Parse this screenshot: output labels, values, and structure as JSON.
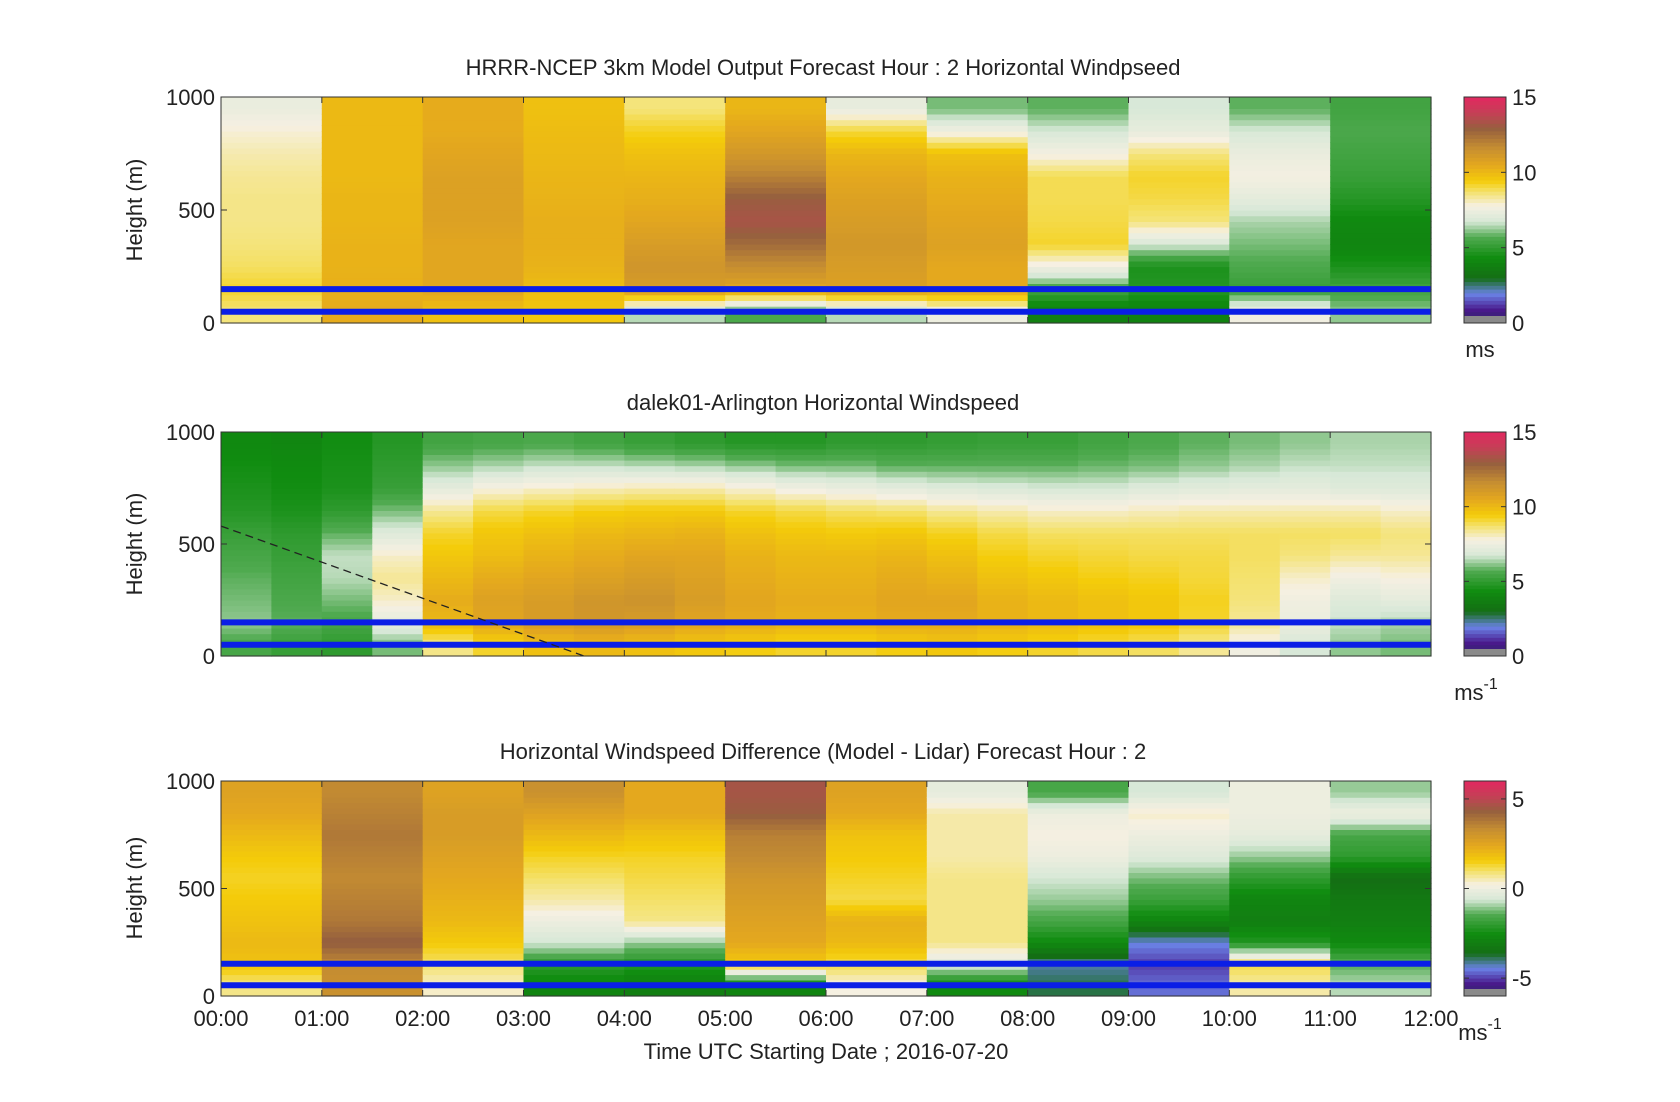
{
  "chart_data": [
    {
      "type": "heatmap",
      "title": "HRRR-NCEP 3km Model Output   Forecast Hour : 2 Horizontal Windpseed",
      "ylabel": "Height (m)",
      "ylim": [
        0,
        1000
      ],
      "yticks": [
        "0",
        "500",
        "1000"
      ],
      "x_hours": [
        0,
        1,
        2,
        3,
        4,
        5,
        6,
        7,
        8,
        9,
        10,
        11,
        12
      ],
      "colorbar": {
        "range": [
          0,
          15
        ],
        "ticks": [
          "0",
          "5",
          "10",
          "15"
        ],
        "unit_label": "ms",
        "unit_exp": ""
      },
      "reference_lines_m": [
        50,
        150
      ],
      "profiles": [
        {
          "hour": 0,
          "values": [
            8.6,
            9.2,
            8.8,
            8.6,
            8.5,
            8.5,
            8.4,
            8.2,
            7.9,
            7.4
          ]
        },
        {
          "hour": 1,
          "values": [
            10.4,
            10.3,
            10.2,
            10.2,
            10.1,
            10.1,
            10.0,
            10.0,
            10.0,
            10.0
          ]
        },
        {
          "hour": 2,
          "values": [
            9.8,
            10.6,
            10.6,
            10.6,
            10.8,
            10.8,
            10.8,
            10.6,
            10.4,
            10.4
          ]
        },
        {
          "hour": 3,
          "values": [
            9.6,
            9.9,
            10.2,
            10.3,
            10.3,
            10.2,
            10.1,
            10.0,
            9.9,
            9.8
          ]
        },
        {
          "hour": 4,
          "values": [
            6.5,
            11.0,
            11.3,
            11.0,
            10.6,
            10.3,
            10.1,
            9.8,
            9.3,
            8.6
          ]
        },
        {
          "hour": 5,
          "values": [
            5.6,
            10.6,
            11.6,
            12.6,
            13.3,
            13.0,
            12.0,
            11.2,
            10.6,
            10.1
          ]
        },
        {
          "hour": 6,
          "values": [
            6.5,
            10.8,
            11.0,
            11.2,
            11.0,
            10.8,
            10.5,
            10.1,
            9.1,
            7.3
          ]
        },
        {
          "hour": 7,
          "values": [
            7.5,
            10.5,
            10.5,
            10.8,
            10.6,
            10.4,
            10.2,
            9.8,
            7.6,
            6.0
          ]
        },
        {
          "hour": 8,
          "values": [
            3.8,
            5.4,
            7.6,
            9.2,
            9.0,
            8.9,
            8.9,
            7.7,
            6.8,
            5.8
          ]
        },
        {
          "hour": 9,
          "values": [
            3.9,
            4.8,
            4.6,
            6.8,
            8.6,
            9.0,
            9.2,
            8.6,
            7.3,
            6.8
          ]
        },
        {
          "hour": 10,
          "values": [
            7.6,
            5.2,
            5.6,
            6.0,
            6.4,
            7.2,
            7.7,
            7.4,
            6.8,
            5.8
          ]
        },
        {
          "hour": 11,
          "values": [
            6.2,
            5.4,
            4.6,
            4.0,
            4.2,
            4.8,
            5.2,
            5.4,
            5.6,
            5.4
          ]
        }
      ]
    },
    {
      "type": "heatmap",
      "title": "dalek01-Arlington  Horizontal Windspeed",
      "ylabel": "Height (m)",
      "ylim": [
        0,
        1000
      ],
      "yticks": [
        "0",
        "500",
        "1000"
      ],
      "x_hours": [
        0,
        1,
        2,
        3,
        4,
        5,
        6,
        7,
        8,
        9,
        10,
        11,
        12
      ],
      "colorbar": {
        "range": [
          0,
          15
        ],
        "ticks": [
          "0",
          "5",
          "10",
          "15"
        ],
        "unit_label": "ms",
        "unit_exp": "-1"
      },
      "reference_lines_m": [
        50,
        150
      ],
      "reference_curve": {
        "from": [
          0,
          580
        ],
        "to": [
          3.6,
          0
        ]
      },
      "profiles": [
        {
          "hour": 0.0,
          "values": [
            5.5,
            6.2,
            6.0,
            5.8,
            5.5,
            5.2,
            4.8,
            4.6,
            4.4,
            4.2
          ]
        },
        {
          "hour": 0.5,
          "values": [
            5.2,
            5.8,
            5.6,
            5.4,
            5.2,
            5.0,
            4.6,
            4.4,
            4.3,
            4.1
          ]
        },
        {
          "hour": 1.0,
          "values": [
            5.0,
            5.5,
            6.0,
            6.5,
            6.6,
            5.8,
            5.0,
            4.6,
            4.5,
            4.4
          ]
        },
        {
          "hour": 1.5,
          "values": [
            6.0,
            7.2,
            8.0,
            8.4,
            8.0,
            7.0,
            6.0,
            5.2,
            5.0,
            4.8
          ]
        },
        {
          "hour": 2.0,
          "values": [
            8.5,
            10.0,
            10.4,
            10.0,
            9.6,
            9.2,
            8.4,
            7.2,
            6.2,
            5.4
          ]
        },
        {
          "hour": 2.5,
          "values": [
            9.2,
            10.6,
            10.8,
            10.4,
            9.9,
            9.6,
            9.0,
            7.8,
            6.4,
            5.5
          ]
        },
        {
          "hour": 3.0,
          "values": [
            9.8,
            11.0,
            11.0,
            10.6,
            10.2,
            9.8,
            9.2,
            8.0,
            6.6,
            5.6
          ]
        },
        {
          "hour": 3.5,
          "values": [
            10.0,
            11.2,
            11.3,
            10.8,
            10.4,
            10.0,
            9.4,
            8.1,
            6.6,
            5.4
          ]
        },
        {
          "hour": 4.0,
          "values": [
            9.8,
            11.0,
            11.4,
            11.0,
            10.6,
            10.1,
            9.5,
            8.2,
            6.5,
            5.2
          ]
        },
        {
          "hour": 4.5,
          "values": [
            9.6,
            10.6,
            11.0,
            10.8,
            10.6,
            10.2,
            9.5,
            8.2,
            6.4,
            5.0
          ]
        },
        {
          "hour": 5.0,
          "values": [
            9.4,
            10.4,
            10.6,
            10.4,
            10.2,
            9.8,
            9.2,
            7.9,
            6.2,
            4.8
          ]
        },
        {
          "hour": 5.5,
          "values": [
            9.2,
            10.2,
            10.4,
            10.2,
            10.0,
            9.6,
            9.0,
            7.6,
            6.0,
            4.8
          ]
        },
        {
          "hour": 6.0,
          "values": [
            9.2,
            10.2,
            10.4,
            10.2,
            10.0,
            9.5,
            8.8,
            7.4,
            6.0,
            5.0
          ]
        },
        {
          "hour": 6.5,
          "values": [
            9.4,
            10.4,
            10.6,
            10.4,
            10.1,
            9.6,
            8.7,
            7.2,
            5.8,
            5.0
          ]
        },
        {
          "hour": 7.0,
          "values": [
            9.6,
            10.4,
            10.6,
            10.2,
            9.8,
            9.3,
            8.4,
            7.0,
            5.8,
            5.1
          ]
        },
        {
          "hour": 7.5,
          "values": [
            9.4,
            10.2,
            10.2,
            9.8,
            9.4,
            9.0,
            8.2,
            6.9,
            5.8,
            5.2
          ]
        },
        {
          "hour": 8.0,
          "values": [
            9.2,
            10.0,
            10.0,
            9.6,
            9.2,
            8.8,
            8.0,
            6.8,
            5.8,
            5.2
          ]
        },
        {
          "hour": 8.5,
          "values": [
            9.0,
            9.8,
            9.8,
            9.4,
            9.1,
            8.8,
            8.0,
            6.8,
            5.9,
            5.4
          ]
        },
        {
          "hour": 9.0,
          "values": [
            8.8,
            9.6,
            9.6,
            9.3,
            9.0,
            8.8,
            8.1,
            7.0,
            6.0,
            5.6
          ]
        },
        {
          "hour": 9.5,
          "values": [
            8.4,
            9.2,
            9.3,
            9.1,
            9.0,
            8.8,
            8.2,
            7.1,
            6.2,
            5.8
          ]
        },
        {
          "hour": 10.0,
          "values": [
            7.6,
            8.4,
            8.6,
            8.7,
            8.8,
            8.8,
            8.2,
            7.2,
            6.4,
            6.0
          ]
        },
        {
          "hour": 10.5,
          "values": [
            6.8,
            7.4,
            7.6,
            8.0,
            8.6,
            8.8,
            8.2,
            7.2,
            6.6,
            6.2
          ]
        },
        {
          "hour": 11.0,
          "values": [
            6.2,
            6.6,
            7.0,
            7.6,
            8.4,
            8.8,
            8.2,
            7.0,
            6.6,
            6.4
          ]
        },
        {
          "hour": 11.5,
          "values": [
            6.0,
            6.4,
            7.2,
            7.8,
            8.4,
            8.6,
            8.0,
            7.0,
            6.6,
            6.4
          ]
        }
      ]
    },
    {
      "type": "heatmap",
      "title": "Horizontal Windspeed Difference (Model - Lidar) Forecast Hour : 2",
      "xlabel": "Time UTC  Starting Date ; 2016-07-20",
      "ylabel": "Height (m)",
      "ylim": [
        0,
        1000
      ],
      "yticks": [
        "0",
        "500",
        "1000"
      ],
      "x_hours": [
        0,
        1,
        2,
        3,
        4,
        5,
        6,
        7,
        8,
        9,
        10,
        11,
        12
      ],
      "xticks": [
        "00:00",
        "01:00",
        "02:00",
        "03:00",
        "04:00",
        "05:00",
        "06:00",
        "07:00",
        "08:00",
        "09:00",
        "10:00",
        "11:00",
        "12:00"
      ],
      "colorbar": {
        "range": [
          -6,
          6
        ],
        "ticks": [
          "-5",
          "0",
          "5"
        ],
        "unit_label": "ms",
        "unit_exp": "-1"
      },
      "reference_lines_m": [
        50,
        150
      ],
      "profiles": [
        {
          "hour": 0,
          "values": [
            0.8,
            1.8,
            2.0,
            1.8,
            1.6,
            1.4,
            1.6,
            2.0,
            2.4,
            2.6
          ]
        },
        {
          "hour": 1,
          "values": [
            3.2,
            3.4,
            4.4,
            3.8,
            3.6,
            3.4,
            3.6,
            3.8,
            3.6,
            3.4
          ]
        },
        {
          "hour": 2,
          "values": [
            0.4,
            1.0,
            1.6,
            2.0,
            2.2,
            2.4,
            2.6,
            2.8,
            2.8,
            2.6
          ]
        },
        {
          "hour": 3,
          "values": [
            -2.8,
            -2.0,
            -0.6,
            0.0,
            0.6,
            1.0,
            1.4,
            2.0,
            2.6,
            3.2
          ]
        },
        {
          "hour": 4,
          "values": [
            -3.0,
            -2.2,
            -1.0,
            0.8,
            1.0,
            1.2,
            1.4,
            1.8,
            2.4,
            2.4
          ]
        },
        {
          "hour": 5,
          "values": [
            -2.8,
            1.6,
            2.4,
            2.6,
            2.8,
            3.0,
            3.4,
            3.6,
            4.4,
            4.6
          ]
        },
        {
          "hour": 6,
          "values": [
            0.2,
            1.2,
            2.0,
            2.2,
            1.2,
            1.4,
            1.6,
            1.8,
            2.4,
            2.6
          ]
        },
        {
          "hour": 7,
          "values": [
            -2.6,
            -0.4,
            0.8,
            0.8,
            0.8,
            0.8,
            0.6,
            0.6,
            0.6,
            -0.2
          ]
        },
        {
          "hour": 8,
          "values": [
            -3.8,
            -4.2,
            -2.6,
            -1.6,
            -1.0,
            -0.6,
            0.0,
            0.2,
            0.0,
            -1.6
          ]
        },
        {
          "hour": 9,
          "values": [
            -4.6,
            -5.0,
            -4.4,
            -2.8,
            -1.8,
            -1.2,
            -0.4,
            0.0,
            0.4,
            -0.6
          ]
        },
        {
          "hour": 10,
          "values": [
            0.6,
            1.2,
            -2.2,
            -3.0,
            -2.8,
            -2.0,
            -1.0,
            -0.2,
            0.0,
            0.0
          ]
        },
        {
          "hour": 11,
          "values": [
            -0.8,
            -1.4,
            -2.6,
            -3.0,
            -3.2,
            -3.6,
            -2.0,
            -1.6,
            0.0,
            -1.0
          ]
        }
      ]
    }
  ]
}
